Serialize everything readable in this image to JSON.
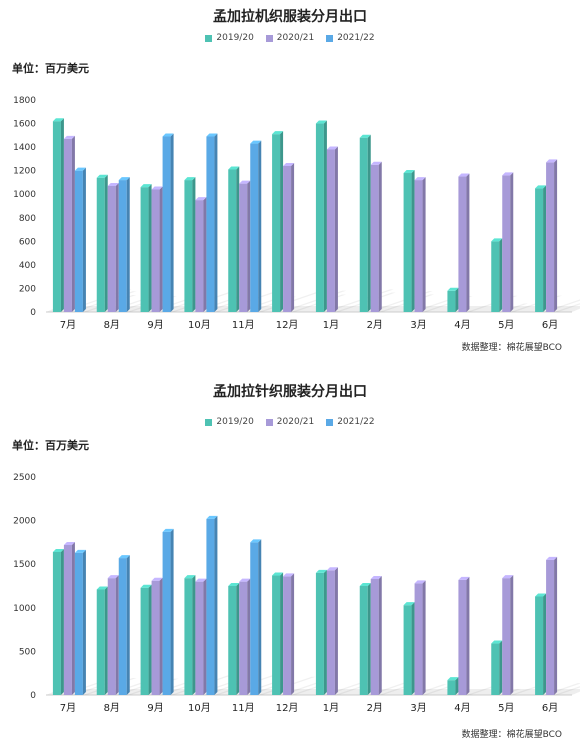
{
  "colors": {
    "s1": "#4ec2b3",
    "s2": "#a79ad8",
    "s3": "#5aa9e6"
  },
  "charts": [
    {
      "title": "孟加拉机织服装分月出口",
      "unit": "单位：百万美元",
      "source": "数据整理：棉花展望BCO"
    },
    {
      "title": "孟加拉针织服装分月出口",
      "unit": "单位：百万美元",
      "source": "数据整理：棉花展望BCO"
    }
  ],
  "chart_data": [
    {
      "type": "bar",
      "title": "孟加拉机织服装分月出口",
      "ylabel": "单位：百万美元",
      "ylim": [
        0,
        1800
      ],
      "yticks": [
        0,
        200,
        400,
        600,
        800,
        1000,
        1200,
        1400,
        1600,
        1800
      ],
      "grid": false,
      "legend": "top",
      "categories": [
        "7月",
        "8月",
        "9月",
        "10月",
        "11月",
        "12月",
        "1月",
        "2月",
        "3月",
        "4月",
        "5月",
        "6月"
      ],
      "series": [
        {
          "name": "2019/20",
          "values": [
            1620,
            1140,
            1060,
            1120,
            1210,
            1510,
            1600,
            1480,
            1180,
            180,
            600,
            1050
          ]
        },
        {
          "name": "2020/21",
          "values": [
            1470,
            1070,
            1040,
            950,
            1090,
            1240,
            1380,
            1250,
            1120,
            1150,
            1160,
            1270
          ]
        },
        {
          "name": "2021/22",
          "values": [
            1200,
            1120,
            1490,
            1490,
            1430,
            null,
            null,
            null,
            null,
            null,
            null,
            null
          ]
        }
      ]
    },
    {
      "type": "bar",
      "title": "孟加拉针织服装分月出口",
      "ylabel": "单位：百万美元",
      "ylim": [
        0,
        2500
      ],
      "yticks": [
        0,
        500,
        1000,
        1500,
        2000,
        2500
      ],
      "grid": false,
      "legend": "top",
      "categories": [
        "7月",
        "8月",
        "9月",
        "10月",
        "11月",
        "12月",
        "1月",
        "2月",
        "3月",
        "4月",
        "5月",
        "6月"
      ],
      "series": [
        {
          "name": "2019/20",
          "values": [
            1640,
            1210,
            1230,
            1340,
            1250,
            1370,
            1400,
            1250,
            1030,
            170,
            590,
            1130
          ]
        },
        {
          "name": "2020/21",
          "values": [
            1720,
            1340,
            1310,
            1300,
            1300,
            1360,
            1430,
            1330,
            1280,
            1320,
            1340,
            1550
          ]
        },
        {
          "name": "2021/22",
          "values": [
            1630,
            1570,
            1870,
            2020,
            1750,
            null,
            null,
            null,
            null,
            null,
            null,
            null
          ]
        }
      ]
    }
  ]
}
